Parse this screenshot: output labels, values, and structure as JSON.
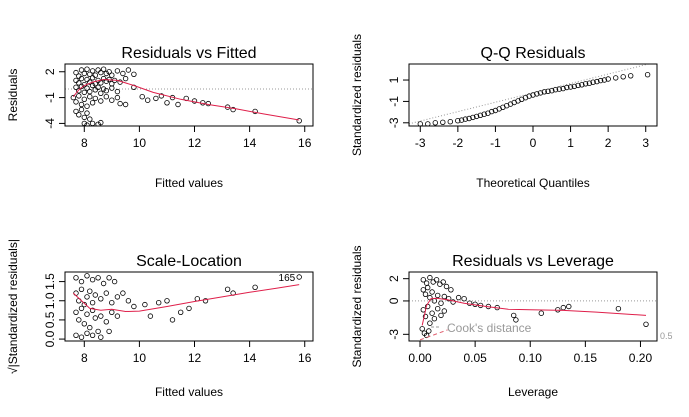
{
  "chart_data": [
    {
      "type": "scatter",
      "title": "Residuals vs Fitted",
      "xlabel": "Fitted values",
      "ylabel": "Residuals",
      "xlim": [
        7.3,
        16.3
      ],
      "ylim": [
        -4.3,
        2.9
      ],
      "xticks": [
        8,
        10,
        12,
        14,
        16
      ],
      "yticks": [
        -4,
        -1,
        2
      ],
      "hline": 0,
      "hline_style": "dotted",
      "point_labels": [],
      "points": [
        [
          7.7,
          1.9
        ],
        [
          7.8,
          1.5
        ],
        [
          7.9,
          2.2
        ],
        [
          8.0,
          1.8
        ],
        [
          8.1,
          2.3
        ],
        [
          8.2,
          1.7
        ],
        [
          8.3,
          2.1
        ],
        [
          8.4,
          1.6
        ],
        [
          8.5,
          2.2
        ],
        [
          8.6,
          1.9
        ],
        [
          8.7,
          2.3
        ],
        [
          8.8,
          1.8
        ],
        [
          8.9,
          2.0
        ],
        [
          9.0,
          1.6
        ],
        [
          9.2,
          2.1
        ],
        [
          9.4,
          1.8
        ],
        [
          9.6,
          2.2
        ],
        [
          9.8,
          1.7
        ],
        [
          7.7,
          1.0
        ],
        [
          7.8,
          0.7
        ],
        [
          7.9,
          1.2
        ],
        [
          8.0,
          0.5
        ],
        [
          8.1,
          1.1
        ],
        [
          8.2,
          0.8
        ],
        [
          8.3,
          1.3
        ],
        [
          8.4,
          0.6
        ],
        [
          8.5,
          1.0
        ],
        [
          8.6,
          0.7
        ],
        [
          8.7,
          1.2
        ],
        [
          8.8,
          0.9
        ],
        [
          8.9,
          1.1
        ],
        [
          9.0,
          0.6
        ],
        [
          9.1,
          1.0
        ],
        [
          9.3,
          0.8
        ],
        [
          9.5,
          1.2
        ],
        [
          7.7,
          0.2
        ],
        [
          7.8,
          -0.2
        ],
        [
          7.9,
          0.3
        ],
        [
          8.0,
          -0.4
        ],
        [
          8.1,
          0.1
        ],
        [
          8.2,
          -0.3
        ],
        [
          8.3,
          0.4
        ],
        [
          8.4,
          -0.1
        ],
        [
          8.5,
          0.2
        ],
        [
          8.6,
          -0.5
        ],
        [
          8.7,
          0.0
        ],
        [
          8.8,
          -0.2
        ],
        [
          9.0,
          0.1
        ],
        [
          9.2,
          -0.3
        ],
        [
          7.6,
          -1.0
        ],
        [
          7.7,
          -1.5
        ],
        [
          7.8,
          -0.8
        ],
        [
          7.9,
          -1.8
        ],
        [
          8.0,
          -1.2
        ],
        [
          8.1,
          -2.0
        ],
        [
          8.2,
          -0.9
        ],
        [
          8.3,
          -1.6
        ],
        [
          8.4,
          -1.1
        ],
        [
          8.6,
          -1.4
        ],
        [
          8.8,
          -0.9
        ],
        [
          9.0,
          -1.3
        ],
        [
          9.2,
          -1.0
        ],
        [
          9.3,
          -1.7
        ],
        [
          9.5,
          -1.8
        ],
        [
          7.7,
          -2.6
        ],
        [
          7.8,
          -3.0
        ],
        [
          7.9,
          -2.4
        ],
        [
          8.0,
          -3.3
        ],
        [
          8.1,
          -2.8
        ],
        [
          8.2,
          -3.5
        ],
        [
          8.0,
          -4.0
        ],
        [
          8.1,
          -4.2
        ],
        [
          8.3,
          -4.0
        ],
        [
          8.5,
          -4.1
        ],
        [
          8.6,
          -3.9
        ],
        [
          9.8,
          0.2
        ],
        [
          10.1,
          -0.9
        ],
        [
          10.3,
          -1.3
        ],
        [
          10.6,
          -1.1
        ],
        [
          10.8,
          -0.8
        ],
        [
          11.0,
          -1.6
        ],
        [
          11.2,
          -1.0
        ],
        [
          11.4,
          -1.8
        ],
        [
          11.7,
          -1.1
        ],
        [
          12.0,
          -1.4
        ],
        [
          12.3,
          -1.6
        ],
        [
          12.5,
          -1.7
        ],
        [
          13.2,
          -2.1
        ],
        [
          13.4,
          -2.4
        ],
        [
          14.2,
          -2.6
        ],
        [
          15.8,
          -3.7
        ]
      ],
      "smoother": [
        [
          7.6,
          -0.9
        ],
        [
          7.8,
          -0.1
        ],
        [
          8.0,
          0.4
        ],
        [
          8.3,
          0.8
        ],
        [
          8.7,
          1.1
        ],
        [
          9.2,
          1.0
        ],
        [
          9.8,
          0.4
        ],
        [
          10.5,
          -0.4
        ],
        [
          11.5,
          -1.2
        ],
        [
          12.5,
          -1.8
        ],
        [
          13.5,
          -2.3
        ],
        [
          14.5,
          -2.9
        ],
        [
          15.8,
          -3.6
        ]
      ]
    },
    {
      "type": "scatter",
      "title": "Q-Q Residuals",
      "xlabel": "Theoretical Quantiles",
      "ylabel": "Standardized residuals",
      "xlim": [
        -3.3,
        3.3
      ],
      "ylim": [
        -3.3,
        2.5
      ],
      "xticks": [
        -3,
        -2,
        -1,
        0,
        1,
        2,
        3
      ],
      "yticks": [
        -3,
        -1,
        1
      ],
      "reference_line": [
        [
          -3.3,
          -3.1
        ],
        [
          3.3,
          2.7
        ]
      ],
      "reference_line_style": "dotted",
      "point_labels": [],
      "points": [
        [
          -3.0,
          -3.1
        ],
        [
          -2.8,
          -3.1
        ],
        [
          -2.6,
          -3.0
        ],
        [
          -2.4,
          -2.95
        ],
        [
          -2.2,
          -2.9
        ],
        [
          -2.0,
          -2.8
        ],
        [
          -1.9,
          -2.75
        ],
        [
          -1.8,
          -2.65
        ],
        [
          -1.7,
          -2.6
        ],
        [
          -1.6,
          -2.5
        ],
        [
          -1.5,
          -2.4
        ],
        [
          -1.4,
          -2.3
        ],
        [
          -1.3,
          -2.2
        ],
        [
          -1.2,
          -2.1
        ],
        [
          -1.1,
          -1.95
        ],
        [
          -1.0,
          -1.85
        ],
        [
          -0.9,
          -1.7
        ],
        [
          -0.8,
          -1.55
        ],
        [
          -0.7,
          -1.4
        ],
        [
          -0.6,
          -1.25
        ],
        [
          -0.5,
          -1.1
        ],
        [
          -0.4,
          -0.95
        ],
        [
          -0.3,
          -0.8
        ],
        [
          -0.2,
          -0.65
        ],
        [
          -0.1,
          -0.5
        ],
        [
          0.0,
          -0.4
        ],
        [
          0.1,
          -0.3
        ],
        [
          0.2,
          -0.2
        ],
        [
          0.3,
          -0.1
        ],
        [
          0.4,
          -0.05
        ],
        [
          0.5,
          0.0
        ],
        [
          0.6,
          0.1
        ],
        [
          0.7,
          0.15
        ],
        [
          0.8,
          0.2
        ],
        [
          0.9,
          0.3
        ],
        [
          1.0,
          0.35
        ],
        [
          1.1,
          0.4
        ],
        [
          1.2,
          0.5
        ],
        [
          1.3,
          0.55
        ],
        [
          1.4,
          0.65
        ],
        [
          1.5,
          0.7
        ],
        [
          1.6,
          0.8
        ],
        [
          1.7,
          0.85
        ],
        [
          1.8,
          0.95
        ],
        [
          1.9,
          1.0
        ],
        [
          2.0,
          1.1
        ],
        [
          2.2,
          1.2
        ],
        [
          2.4,
          1.3
        ],
        [
          2.6,
          1.4
        ],
        [
          3.05,
          1.5
        ]
      ]
    },
    {
      "type": "scatter",
      "title": "Scale-Location",
      "xlabel": "Fitted values",
      "ylabel": "√|Standardized residuals|",
      "xlim": [
        7.3,
        16.3
      ],
      "ylim": [
        -0.05,
        1.75
      ],
      "xticks": [
        8,
        10,
        12,
        14,
        16
      ],
      "yticks": [
        0.0,
        0.5,
        1.0,
        1.5
      ],
      "ytick_labels": [
        "0.0",
        "0.5",
        "1.0",
        "1.5"
      ],
      "point_labels": [
        {
          "x": 15.8,
          "y": 1.62,
          "text": "165"
        }
      ],
      "points": [
        [
          7.7,
          1.6
        ],
        [
          7.9,
          1.5
        ],
        [
          8.1,
          1.65
        ],
        [
          8.3,
          1.55
        ],
        [
          8.5,
          1.6
        ],
        [
          8.7,
          1.45
        ],
        [
          8.9,
          1.6
        ],
        [
          9.1,
          1.5
        ],
        [
          7.7,
          1.2
        ],
        [
          7.8,
          1.0
        ],
        [
          7.9,
          1.3
        ],
        [
          8.0,
          0.9
        ],
        [
          8.1,
          1.1
        ],
        [
          8.2,
          1.25
        ],
        [
          8.3,
          0.95
        ],
        [
          8.4,
          1.15
        ],
        [
          8.6,
          1.05
        ],
        [
          8.8,
          1.2
        ],
        [
          9.0,
          0.95
        ],
        [
          9.2,
          1.1
        ],
        [
          9.4,
          1.2
        ],
        [
          9.6,
          1.0
        ],
        [
          7.7,
          0.7
        ],
        [
          7.8,
          0.5
        ],
        [
          7.9,
          0.8
        ],
        [
          8.0,
          0.4
        ],
        [
          8.1,
          0.65
        ],
        [
          8.2,
          0.3
        ],
        [
          8.3,
          0.75
        ],
        [
          8.4,
          0.55
        ],
        [
          8.5,
          0.2
        ],
        [
          8.6,
          0.6
        ],
        [
          8.8,
          0.45
        ],
        [
          9.0,
          0.7
        ],
        [
          9.2,
          0.6
        ],
        [
          7.7,
          0.1
        ],
        [
          7.9,
          0.05
        ],
        [
          8.1,
          0.15
        ],
        [
          8.3,
          0.1
        ],
        [
          8.6,
          0.05
        ],
        [
          8.9,
          0.2
        ],
        [
          9.8,
          0.85
        ],
        [
          10.2,
          0.9
        ],
        [
          10.4,
          0.6
        ],
        [
          10.7,
          0.95
        ],
        [
          11.0,
          1.0
        ],
        [
          11.2,
          0.5
        ],
        [
          11.5,
          0.7
        ],
        [
          11.8,
          0.8
        ],
        [
          12.1,
          1.05
        ],
        [
          12.4,
          1.0
        ],
        [
          13.2,
          1.3
        ],
        [
          13.4,
          1.2
        ],
        [
          14.2,
          1.35
        ],
        [
          15.8,
          1.62
        ]
      ],
      "smoother": [
        [
          7.6,
          1.2
        ],
        [
          7.9,
          1.0
        ],
        [
          8.2,
          0.8
        ],
        [
          8.6,
          0.75
        ],
        [
          9.0,
          0.78
        ],
        [
          9.5,
          0.72
        ],
        [
          10.0,
          0.73
        ],
        [
          11.0,
          0.85
        ],
        [
          12.0,
          0.98
        ],
        [
          13.0,
          1.1
        ],
        [
          14.0,
          1.22
        ],
        [
          15.0,
          1.33
        ],
        [
          15.8,
          1.42
        ]
      ]
    },
    {
      "type": "scatter",
      "title": "Residuals vs Leverage",
      "xlabel": "Leverage",
      "ylabel": "Standardized residuals",
      "xlim": [
        -0.01,
        0.215
      ],
      "ylim": [
        -3.6,
        2.6
      ],
      "xticks": [
        0.0,
        0.05,
        0.1,
        0.15,
        0.2
      ],
      "xtick_labels": [
        "0.00",
        "0.05",
        "0.10",
        "0.15",
        "0.20"
      ],
      "yticks": [
        -3,
        0,
        2
      ],
      "hline": 0,
      "hline_style": "dotted",
      "annotations": [
        "Cook's distance",
        "0.5"
      ],
      "points": [
        [
          0.003,
          1.9
        ],
        [
          0.006,
          1.6
        ],
        [
          0.009,
          2.1
        ],
        [
          0.012,
          1.7
        ],
        [
          0.015,
          1.9
        ],
        [
          0.018,
          1.5
        ],
        [
          0.021,
          1.7
        ],
        [
          0.024,
          1.3
        ],
        [
          0.028,
          1.0
        ],
        [
          0.003,
          1.0
        ],
        [
          0.005,
          0.6
        ],
        [
          0.007,
          1.2
        ],
        [
          0.009,
          0.3
        ],
        [
          0.011,
          0.8
        ],
        [
          0.013,
          0.0
        ],
        [
          0.016,
          0.5
        ],
        [
          0.019,
          -0.2
        ],
        [
          0.022,
          0.4
        ],
        [
          0.026,
          0.2
        ],
        [
          0.03,
          -0.1
        ],
        [
          0.035,
          0.3
        ],
        [
          0.04,
          0.2
        ],
        [
          0.045,
          -0.2
        ],
        [
          0.003,
          -0.8
        ],
        [
          0.005,
          -1.4
        ],
        [
          0.007,
          -0.5
        ],
        [
          0.009,
          -2.0
        ],
        [
          0.011,
          -1.1
        ],
        [
          0.013,
          -1.6
        ],
        [
          0.016,
          -0.7
        ],
        [
          0.019,
          -1.3
        ],
        [
          0.022,
          -0.9
        ],
        [
          0.002,
          -2.5
        ],
        [
          0.004,
          -2.9
        ],
        [
          0.006,
          -3.1
        ],
        [
          0.008,
          -2.7
        ],
        [
          0.05,
          -0.3
        ],
        [
          0.055,
          -0.4
        ],
        [
          0.062,
          -0.5
        ],
        [
          0.07,
          -0.6
        ],
        [
          0.085,
          -1.3
        ],
        [
          0.087,
          -1.7
        ],
        [
          0.11,
          -1.1
        ],
        [
          0.125,
          -0.8
        ],
        [
          0.13,
          -0.6
        ],
        [
          0.135,
          -0.5
        ],
        [
          0.18,
          -0.7
        ],
        [
          0.205,
          -2.1
        ]
      ],
      "smoother": [
        [
          0.002,
          -2.2
        ],
        [
          0.006,
          -0.4
        ],
        [
          0.01,
          0.2
        ],
        [
          0.015,
          0.25
        ],
        [
          0.025,
          0.1
        ],
        [
          0.04,
          -0.2
        ],
        [
          0.06,
          -0.5
        ],
        [
          0.08,
          -0.75
        ],
        [
          0.1,
          -0.8
        ],
        [
          0.13,
          -0.85
        ],
        [
          0.16,
          -1.0
        ],
        [
          0.205,
          -1.3
        ]
      ]
    }
  ]
}
